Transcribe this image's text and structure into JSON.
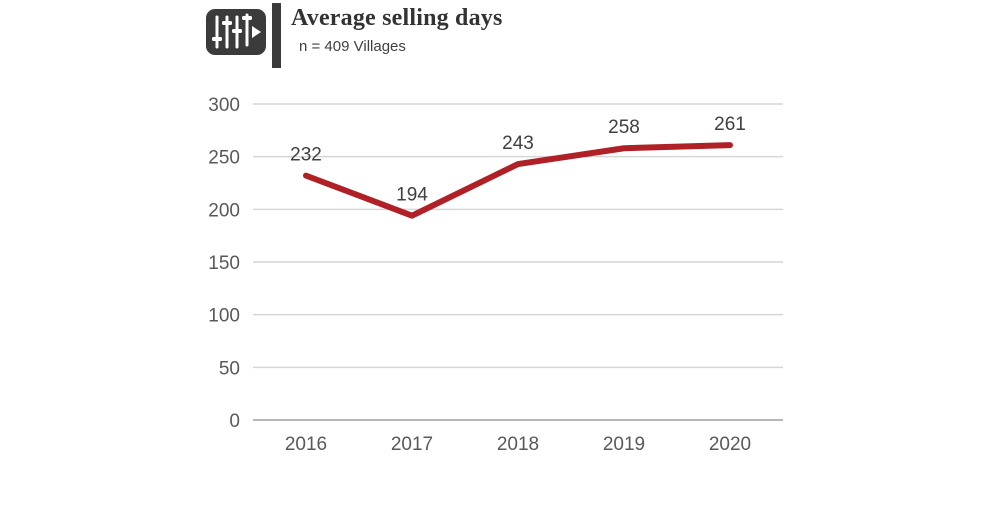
{
  "header": {
    "title": "Average selling days",
    "subtitle": "n = 409 Villages",
    "icon": "equalizer-play-icon",
    "accent_color": "#3b3b3b"
  },
  "chart_data": {
    "type": "line",
    "title": "Average selling days",
    "subtitle": "n = 409 Villages",
    "categories": [
      "2016",
      "2017",
      "2018",
      "2019",
      "2020"
    ],
    "series": [
      {
        "name": "Average selling days",
        "values": [
          232,
          194,
          243,
          258,
          261
        ]
      }
    ],
    "data_labels": [
      "232",
      "194",
      "243",
      "258",
      "261"
    ],
    "xlabel": "",
    "ylabel": "",
    "ylim": [
      0,
      300
    ],
    "yticks": [
      0,
      50,
      100,
      150,
      200,
      250,
      300
    ],
    "grid": true,
    "legend": false,
    "line_color": "#b02127",
    "grid_color": "#d6d6d6",
    "axis_line_color": "#b7b7b7",
    "tick_label_color": "#595959",
    "data_label_color": "#404040"
  }
}
